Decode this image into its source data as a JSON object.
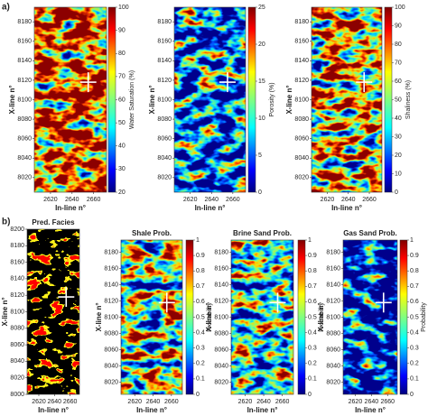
{
  "panel_labels": [
    "a)",
    "b)"
  ],
  "chart_data": [
    {
      "type": "heatmap",
      "xlabel": "In-line n°",
      "ylabel": "X-line n°",
      "xlim": [
        2605,
        2672
      ],
      "xticks": [
        2620,
        2640,
        2660
      ],
      "ylim": [
        8005,
        8195
      ],
      "yticks": [
        8020,
        8040,
        8060,
        8080,
        8100,
        8120,
        8140,
        8160,
        8180
      ],
      "colorbar_label": "Water Saturation (%)",
      "clim": [
        20,
        100
      ],
      "cticks": [
        20,
        30,
        40,
        50,
        60,
        70,
        80,
        90,
        100
      ],
      "colormap": "jet",
      "well": {
        "x": 2655,
        "y": 8118
      }
    },
    {
      "type": "heatmap",
      "xlabel": "In-line n°",
      "ylabel": "X-line n°",
      "xlim": [
        2605,
        2672
      ],
      "xticks": [
        2620,
        2640,
        2660
      ],
      "ylim": [
        8005,
        8195
      ],
      "yticks": [
        8020,
        8040,
        8060,
        8080,
        8100,
        8120,
        8140,
        8160,
        8180
      ],
      "colorbar_label": "Porosity (%)",
      "clim": [
        0,
        25
      ],
      "cticks": [
        0,
        5,
        10,
        15,
        20,
        25
      ],
      "colormap": "jet",
      "well": {
        "x": 2655,
        "y": 8118
      }
    },
    {
      "type": "heatmap",
      "xlabel": "In-line n°",
      "ylabel": "X-line n°",
      "xlim": [
        2605,
        2672
      ],
      "xticks": [
        2620,
        2640,
        2660
      ],
      "ylim": [
        8005,
        8195
      ],
      "yticks": [
        8020,
        8040,
        8060,
        8080,
        8100,
        8120,
        8140,
        8160,
        8180
      ],
      "colorbar_label": "Shaliness (%)",
      "clim": [
        0,
        100
      ],
      "cticks": [
        0,
        10,
        20,
        30,
        40,
        50,
        60,
        70,
        80,
        90,
        100
      ],
      "colormap": "jet",
      "well": {
        "x": 2655,
        "y": 8118
      }
    },
    {
      "type": "heatmap",
      "title": "Pred. Facies",
      "xlabel": "In-line n°",
      "ylabel": "X-line n°",
      "xlim": [
        2605,
        2672
      ],
      "xticks": [
        2620,
        2640,
        2660
      ],
      "ylim": [
        8000,
        8200
      ],
      "yticks": [
        8000,
        8020,
        8040,
        8060,
        8080,
        8100,
        8120,
        8140,
        8160,
        8180,
        8200
      ],
      "colormap": "facies",
      "well": {
        "x": 2655,
        "y": 8118
      }
    },
    {
      "type": "heatmap",
      "title": "Shale Prob.",
      "xlabel": "In-line n°",
      "ylabel": "X-line n°",
      "xlim": [
        2605,
        2672
      ],
      "xticks": [
        2620,
        2640,
        2660
      ],
      "ylim": [
        8005,
        8195
      ],
      "yticks": [
        8020,
        8040,
        8060,
        8080,
        8100,
        8120,
        8140,
        8160,
        8180
      ],
      "colorbar_label": "Probability",
      "clim": [
        0,
        1
      ],
      "cticks": [
        0,
        0.1,
        0.2,
        0.3,
        0.4,
        0.5,
        0.6,
        0.7,
        0.8,
        0.9,
        1
      ],
      "colormap": "jet",
      "well": {
        "x": 2655,
        "y": 8118
      }
    },
    {
      "type": "heatmap",
      "title": "Brine Sand Prob.",
      "xlabel": "In-line n°",
      "ylabel": "X-line n°",
      "xlim": [
        2605,
        2672
      ],
      "xticks": [
        2620,
        2640,
        2660
      ],
      "ylim": [
        8005,
        8195
      ],
      "yticks": [
        8020,
        8040,
        8060,
        8080,
        8100,
        8120,
        8140,
        8160,
        8180
      ],
      "colorbar_label": "Probability",
      "clim": [
        0,
        1
      ],
      "cticks": [
        0,
        0.1,
        0.2,
        0.3,
        0.4,
        0.5,
        0.6,
        0.7,
        0.8,
        0.9,
        1
      ],
      "colormap": "jet",
      "well": {
        "x": 2655,
        "y": 8118
      }
    },
    {
      "type": "heatmap",
      "title": "Gas Sand Prob.",
      "xlabel": "In-line n°",
      "ylabel": "X-line n°",
      "xlim": [
        2605,
        2672
      ],
      "xticks": [
        2620,
        2640,
        2660
      ],
      "ylim": [
        8005,
        8195
      ],
      "yticks": [
        8020,
        8040,
        8060,
        8080,
        8100,
        8120,
        8140,
        8160,
        8180
      ],
      "colorbar_label": "Probability",
      "clim": [
        0,
        1
      ],
      "cticks": [
        0,
        0.1,
        0.2,
        0.3,
        0.4,
        0.5,
        0.6,
        0.7,
        0.8,
        0.9,
        1
      ],
      "colormap": "jet",
      "well": {
        "x": 2655,
        "y": 8118
      }
    }
  ]
}
